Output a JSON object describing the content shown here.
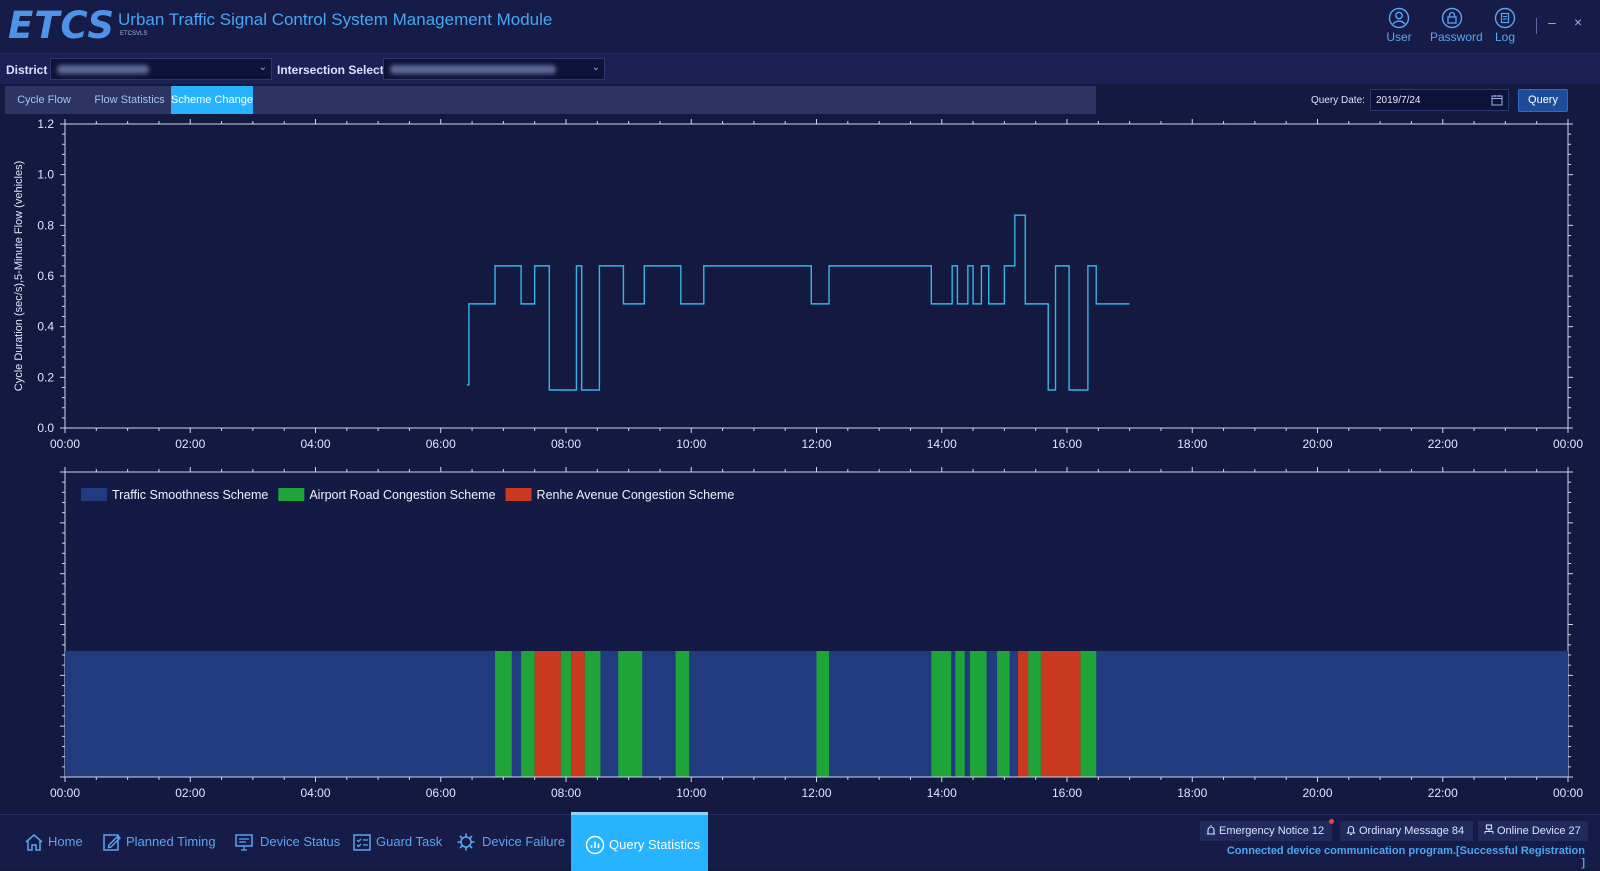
{
  "app": {
    "logo": "ETCS",
    "title": "Urban Traffic Signal Control System Management Module",
    "subtitle": "ETCSVLS"
  },
  "top_actions": [
    {
      "label": "User",
      "icon": "user-icon"
    },
    {
      "label": "Password",
      "icon": "lock-icon"
    },
    {
      "label": "Log",
      "icon": "log-icon"
    }
  ],
  "window_controls": {
    "minimize": "–",
    "close": "×"
  },
  "filters": {
    "district_label": "District",
    "district_value": "",
    "intersection_label": "Intersection Select",
    "intersection_value": ""
  },
  "tabs": [
    {
      "label": "Cycle Flow"
    },
    {
      "label": "Flow Statistics"
    },
    {
      "label": "Scheme Change",
      "active": true
    }
  ],
  "query": {
    "date_label": "Query Date:",
    "date_value": "2019/7/24",
    "button_label": "Query"
  },
  "chart_data": [
    {
      "type": "line",
      "ylabel": "Cycle Duration (sec/s),5-Minute Flow (vehicles)",
      "ylim": [
        0,
        1.2
      ],
      "yticks": [
        "0.0",
        "0.2",
        "0.4",
        "0.6",
        "0.8",
        "1.0",
        "1.2"
      ],
      "xlim": [
        "00:00",
        "24:00"
      ],
      "xticks": [
        "00:00",
        "02:00",
        "04:00",
        "06:00",
        "08:00",
        "10:00",
        "12:00",
        "14:00",
        "16:00",
        "18:00",
        "20:00",
        "22:00",
        "00:00"
      ],
      "grid": false,
      "color": "#35b6e8",
      "series": [
        {
          "step": "post",
          "x": [
            "06:25",
            "06:27",
            "06:52",
            "07:17",
            "07:30",
            "07:44",
            "08:10",
            "08:15",
            "08:32",
            "08:55",
            "09:15",
            "09:50",
            "10:12",
            "11:55",
            "12:12",
            "13:50",
            "14:10",
            "14:15",
            "14:25",
            "14:30",
            "14:38",
            "14:45",
            "15:00",
            "15:10",
            "15:20",
            "15:23",
            "15:42",
            "15:49",
            "16:02",
            "16:20",
            "16:28",
            "16:53",
            "17:00"
          ],
          "y": [
            0.17,
            0.49,
            0.64,
            0.49,
            0.64,
            0.15,
            0.64,
            0.15,
            0.64,
            0.49,
            0.64,
            0.49,
            0.64,
            0.49,
            0.64,
            0.49,
            0.64,
            0.49,
            0.64,
            0.49,
            0.64,
            0.49,
            0.64,
            0.84,
            0.49,
            0.49,
            0.15,
            0.64,
            0.15,
            0.64,
            0.49,
            0.49,
            0.49
          ]
        }
      ]
    },
    {
      "type": "timeline",
      "xlim": [
        "00:00",
        "24:00"
      ],
      "xticks": [
        "00:00",
        "02:00",
        "04:00",
        "06:00",
        "08:00",
        "10:00",
        "12:00",
        "14:00",
        "16:00",
        "18:00",
        "20:00",
        "22:00",
        "00:00"
      ],
      "legend_position": "top-left",
      "schemes": [
        {
          "name": "Traffic Smoothness Scheme",
          "color": "#223a80"
        },
        {
          "name": "Airport Road Congestion Scheme",
          "color": "#1fa43a"
        },
        {
          "name": "Renhe Avenue Congestion Scheme",
          "color": "#c8391f"
        }
      ],
      "base_scheme": 0,
      "segments": [
        {
          "start": "06:52",
          "end": "07:08",
          "scheme": 1
        },
        {
          "start": "07:17",
          "end": "07:30",
          "scheme": 1
        },
        {
          "start": "07:30",
          "end": "07:55",
          "scheme": 2
        },
        {
          "start": "07:55",
          "end": "08:05",
          "scheme": 1
        },
        {
          "start": "08:05",
          "end": "08:18",
          "scheme": 2
        },
        {
          "start": "08:18",
          "end": "08:33",
          "scheme": 1
        },
        {
          "start": "08:50",
          "end": "09:13",
          "scheme": 1
        },
        {
          "start": "09:45",
          "end": "09:58",
          "scheme": 1
        },
        {
          "start": "12:00",
          "end": "12:12",
          "scheme": 1
        },
        {
          "start": "13:50",
          "end": "14:09",
          "scheme": 1
        },
        {
          "start": "14:13",
          "end": "14:22",
          "scheme": 1
        },
        {
          "start": "14:27",
          "end": "14:43",
          "scheme": 1
        },
        {
          "start": "14:53",
          "end": "15:05",
          "scheme": 1
        },
        {
          "start": "15:13",
          "end": "15:23",
          "scheme": 2
        },
        {
          "start": "15:23",
          "end": "15:35",
          "scheme": 1
        },
        {
          "start": "15:35",
          "end": "16:13",
          "scheme": 2
        },
        {
          "start": "16:13",
          "end": "16:28",
          "scheme": 1
        }
      ]
    }
  ],
  "nav": [
    {
      "label": "Home",
      "icon": "home-icon"
    },
    {
      "label": "Planned Timing",
      "icon": "edit-icon"
    },
    {
      "label": "Device Status",
      "icon": "monitor-icon"
    },
    {
      "label": "Guard Task",
      "icon": "task-list-icon"
    },
    {
      "label": "Device Failure",
      "icon": "gear-alert-icon"
    },
    {
      "label": "Query Statistics",
      "icon": "statistics-icon",
      "active": true
    }
  ],
  "notices": {
    "emergency": "Emergency Notice 12",
    "ordinary": "Ordinary Message 84",
    "online": "Online Device 27"
  },
  "status_text": "Connected device communication program.[Successful Registration ]"
}
